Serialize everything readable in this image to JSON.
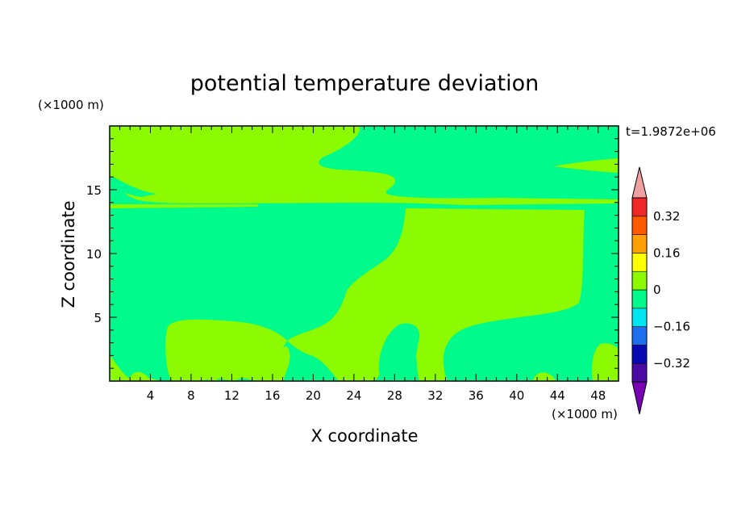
{
  "chart_data": {
    "type": "heatmap",
    "title": "potential temperature deviation",
    "xlabel": "X coordinate",
    "ylabel": "Z coordinate",
    "x_unit": "(×1000 m)",
    "y_unit": "(×1000 m)",
    "time_label": "t=1.9872e+06",
    "xlim": [
      0,
      50
    ],
    "ylim": [
      0,
      20
    ],
    "x_ticks": [
      4,
      8,
      12,
      16,
      20,
      24,
      28,
      32,
      36,
      40,
      44,
      48
    ],
    "y_ticks": [
      5,
      10,
      15
    ],
    "colorbar": {
      "levels": [
        -0.4,
        -0.32,
        -0.24,
        -0.16,
        -0.08,
        0,
        0.08,
        0.16,
        0.24,
        0.32,
        0.4
      ],
      "labels": [
        "-0.32",
        "-0.16",
        "0",
        "0.16",
        "0.32"
      ],
      "label_values": [
        -0.32,
        -0.16,
        0,
        0.16,
        0.32
      ],
      "colors": [
        "#4b0aa3",
        "#0a0ab4",
        "#1e6ef0",
        "#00e6f0",
        "#00fa8c",
        "#8cfa00",
        "#ffff00",
        "#ffa000",
        "#ff5a00",
        "#f02828"
      ],
      "under_color": "#7800b4",
      "over_color": "#f0a0a0"
    },
    "regions": {
      "background_level": "-0.08 to 0",
      "positive_level": "0 to 0.08",
      "positive_patches_x_km": [
        [
          0,
          50,
          14,
          20
        ],
        [
          29.5,
          46.5,
          3.5,
          13.5
        ],
        [
          5.5,
          16.5,
          0.3,
          4.8
        ],
        [
          26,
          30,
          0.5,
          4.5
        ],
        [
          33,
          46,
          0.5,
          4.5
        ],
        [
          47,
          50,
          0.3,
          3
        ]
      ]
    }
  }
}
